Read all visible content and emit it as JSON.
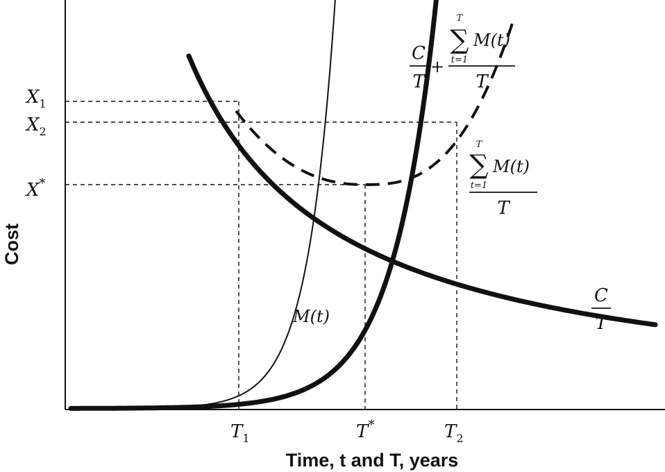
{
  "chart_data": {
    "type": "line",
    "title": "",
    "xlabel": "Time, t and T, years",
    "ylabel": "Cost",
    "x_ticks": [
      {
        "name": "T",
        "sub": "1",
        "sup": ""
      },
      {
        "name": "T",
        "sub": "",
        "sup": "*"
      },
      {
        "name": "T",
        "sub": "2",
        "sup": ""
      }
    ],
    "y_ticks": [
      {
        "name": "X",
        "sub": "1",
        "sup": ""
      },
      {
        "name": "X",
        "sub": "2",
        "sup": ""
      },
      {
        "name": "X",
        "sub": "",
        "sup": "*"
      }
    ],
    "series": [
      {
        "key": "M",
        "label": "M(t)"
      },
      {
        "key": "CT",
        "label_num": "C",
        "label_den": "T"
      },
      {
        "key": "AVG",
        "sum_top": "T",
        "sum_bottom": "t=1",
        "sum_term": "M(t)",
        "den": "T"
      },
      {
        "key": "TOTAL",
        "num_left": "C",
        "den_left": "T",
        "plus": "+",
        "sum_top": "T",
        "sum_bottom": "t=1",
        "sum_term": "M(t)",
        "den": "T"
      }
    ],
    "grid": false,
    "legend": "inline labels"
  }
}
